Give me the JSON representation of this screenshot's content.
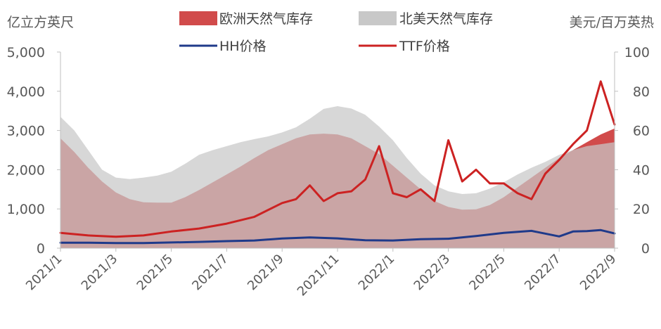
{
  "chart_data": {
    "type": "area",
    "y_left_label": "亿立方英尺",
    "y_right_label": "美元/百万英热",
    "y_left_lim": [
      0,
      5000
    ],
    "y_right_lim": [
      0,
      100
    ],
    "y_left_ticks": [
      "0",
      "1,000",
      "2,000",
      "3,000",
      "4,000",
      "5,000"
    ],
    "y_right_ticks": [
      "0",
      "20",
      "40",
      "60",
      "80",
      "100"
    ],
    "x_lim": [
      "2021/1",
      "2022/9"
    ],
    "x_tick_labels": [
      "2021/1",
      "2021/3",
      "2021/5",
      "2021/7",
      "2021/9",
      "2021/11",
      "2022/1",
      "2022/3",
      "2022/5",
      "2022/7",
      "2022/9"
    ],
    "grid": false,
    "legend_position": "top",
    "series": [
      {
        "name": "欧洲天然气库存",
        "kind": "area",
        "axis": "left",
        "color": "#d14b4b",
        "points": [
          [
            "2021/1",
            2800
          ],
          [
            "2021/1.5",
            2450
          ],
          [
            "2021/2",
            2050
          ],
          [
            "2021/2.5",
            1700
          ],
          [
            "2021/3",
            1420
          ],
          [
            "2021/3.5",
            1250
          ],
          [
            "2021/4",
            1170
          ],
          [
            "2021/4.5",
            1160
          ],
          [
            "2021/5",
            1160
          ],
          [
            "2021/5.5",
            1300
          ],
          [
            "2021/6",
            1480
          ],
          [
            "2021/6.5",
            1680
          ],
          [
            "2021/7",
            1880
          ],
          [
            "2021/7.5",
            2080
          ],
          [
            "2021/8",
            2300
          ],
          [
            "2021/8.5",
            2500
          ],
          [
            "2021/9",
            2650
          ],
          [
            "2021/9.5",
            2800
          ],
          [
            "2021/10",
            2900
          ],
          [
            "2021/10.5",
            2920
          ],
          [
            "2021/11",
            2900
          ],
          [
            "2021/11.5",
            2800
          ],
          [
            "2021/12",
            2600
          ],
          [
            "2021/12.5",
            2400
          ],
          [
            "2022/1",
            2100
          ],
          [
            "2022/1.5",
            1800
          ],
          [
            "2022/2",
            1500
          ],
          [
            "2022/2.5",
            1200
          ],
          [
            "2022/3",
            1050
          ],
          [
            "2022/3.5",
            980
          ],
          [
            "2022/4",
            990
          ],
          [
            "2022/4.5",
            1100
          ],
          [
            "2022/5",
            1300
          ],
          [
            "2022/5.5",
            1550
          ],
          [
            "2022/6",
            1800
          ],
          [
            "2022/6.5",
            2050
          ],
          [
            "2022/7",
            2300
          ],
          [
            "2022/7.5",
            2500
          ],
          [
            "2022/8",
            2700
          ],
          [
            "2022/8.5",
            2900
          ],
          [
            "2022/9",
            3050
          ]
        ]
      },
      {
        "name": "北美天然气库存",
        "kind": "area",
        "axis": "left",
        "color": "#c8c8c8",
        "points": [
          [
            "2021/1",
            3350
          ],
          [
            "2021/1.5",
            3000
          ],
          [
            "2021/2",
            2500
          ],
          [
            "2021/2.5",
            2000
          ],
          [
            "2021/3",
            1800
          ],
          [
            "2021/3.5",
            1760
          ],
          [
            "2021/4",
            1800
          ],
          [
            "2021/4.5",
            1850
          ],
          [
            "2021/5",
            1950
          ],
          [
            "2021/5.5",
            2150
          ],
          [
            "2021/6",
            2380
          ],
          [
            "2021/6.5",
            2500
          ],
          [
            "2021/7",
            2600
          ],
          [
            "2021/7.5",
            2700
          ],
          [
            "2021/8",
            2780
          ],
          [
            "2021/8.5",
            2850
          ],
          [
            "2021/9",
            2950
          ],
          [
            "2021/9.5",
            3080
          ],
          [
            "2021/10",
            3300
          ],
          [
            "2021/10.5",
            3550
          ],
          [
            "2021/11",
            3620
          ],
          [
            "2021/11.5",
            3560
          ],
          [
            "2021/12",
            3400
          ],
          [
            "2021/12.5",
            3100
          ],
          [
            "2022/1",
            2750
          ],
          [
            "2022/1.5",
            2300
          ],
          [
            "2022/2",
            1900
          ],
          [
            "2022/2.5",
            1600
          ],
          [
            "2022/3",
            1450
          ],
          [
            "2022/3.5",
            1380
          ],
          [
            "2022/4",
            1400
          ],
          [
            "2022/4.5",
            1520
          ],
          [
            "2022/5",
            1680
          ],
          [
            "2022/5.5",
            1880
          ],
          [
            "2022/6",
            2050
          ],
          [
            "2022/6.5",
            2200
          ],
          [
            "2022/7",
            2380
          ],
          [
            "2022/7.5",
            2500
          ],
          [
            "2022/8",
            2600
          ],
          [
            "2022/8.5",
            2650
          ],
          [
            "2022/9",
            2700
          ]
        ]
      },
      {
        "name": "HH价格",
        "kind": "line",
        "axis": "right",
        "color": "#1f3a8a",
        "points": [
          [
            "2021/1",
            2.8
          ],
          [
            "2021/2",
            2.8
          ],
          [
            "2021/3",
            2.6
          ],
          [
            "2021/4",
            2.6
          ],
          [
            "2021/5",
            2.9
          ],
          [
            "2021/6",
            3.2
          ],
          [
            "2021/7",
            3.6
          ],
          [
            "2021/8",
            3.9
          ],
          [
            "2021/9",
            4.9
          ],
          [
            "2021/10",
            5.5
          ],
          [
            "2021/11",
            5.0
          ],
          [
            "2021/12",
            4.0
          ],
          [
            "2022/1",
            3.9
          ],
          [
            "2022/2",
            4.6
          ],
          [
            "2022/3",
            4.8
          ],
          [
            "2022/4",
            6.2
          ],
          [
            "2022/5",
            7.8
          ],
          [
            "2022/6",
            8.8
          ],
          [
            "2022/7",
            6.0
          ],
          [
            "2022/7.5",
            8.5
          ],
          [
            "2022/8",
            8.7
          ],
          [
            "2022/8.5",
            9.2
          ],
          [
            "2022/9",
            7.5
          ]
        ]
      },
      {
        "name": "TTF价格",
        "kind": "line",
        "axis": "right",
        "color": "#cc2222",
        "points": [
          [
            "2021/1",
            7.8
          ],
          [
            "2021/2",
            6.5
          ],
          [
            "2021/3",
            5.8
          ],
          [
            "2021/4",
            6.5
          ],
          [
            "2021/5",
            8.5
          ],
          [
            "2021/6",
            10.0
          ],
          [
            "2021/7",
            12.5
          ],
          [
            "2021/8",
            16.0
          ],
          [
            "2021/9",
            23.0
          ],
          [
            "2021/9.5",
            25.0
          ],
          [
            "2021/10",
            32.0
          ],
          [
            "2021/10.5",
            24.0
          ],
          [
            "2021/11",
            28.0
          ],
          [
            "2021/11.5",
            29.0
          ],
          [
            "2021/12",
            35.0
          ],
          [
            "2021/12.5",
            52.0
          ],
          [
            "2022/1",
            28.0
          ],
          [
            "2022/1.5",
            26.0
          ],
          [
            "2022/2",
            30.0
          ],
          [
            "2022/2.5",
            24.0
          ],
          [
            "2022/3",
            55.0
          ],
          [
            "2022/3.5",
            34.0
          ],
          [
            "2022/4",
            40.0
          ],
          [
            "2022/4.5",
            33.0
          ],
          [
            "2022/5",
            33.0
          ],
          [
            "2022/5.5",
            28.0
          ],
          [
            "2022/6",
            25.0
          ],
          [
            "2022/6.5",
            38.0
          ],
          [
            "2022/7",
            45.0
          ],
          [
            "2022/7.5",
            53.0
          ],
          [
            "2022/8",
            60.0
          ],
          [
            "2022/8.5",
            85.0
          ],
          [
            "2022/9",
            63.0
          ]
        ]
      }
    ]
  }
}
